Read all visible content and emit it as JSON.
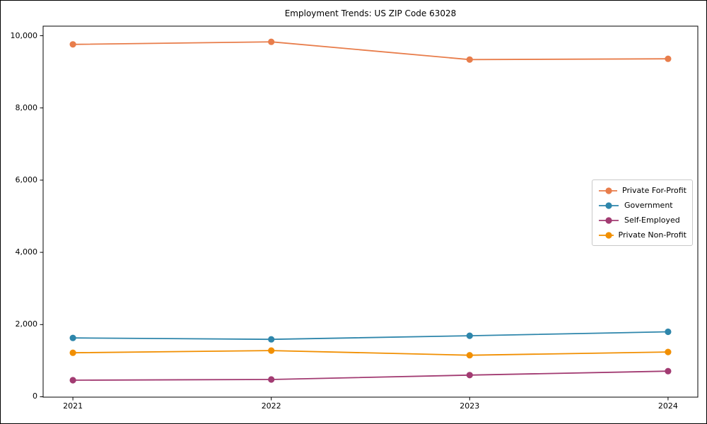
{
  "chart_data": {
    "type": "line",
    "title": "Employment Trends: US ZIP Code 63028",
    "x": [
      2021,
      2022,
      2023,
      2024
    ],
    "x_tick_labels": [
      "2021",
      "2022",
      "2023",
      "2024"
    ],
    "y_ticks": [
      0,
      2000,
      4000,
      6000,
      8000,
      10000
    ],
    "y_tick_labels": [
      "0",
      "2,000",
      "4,000",
      "6,000",
      "8,000",
      "10,000"
    ],
    "xlim": [
      2020.85,
      2024.15
    ],
    "ylim": [
      -10,
      10265
    ],
    "xlabel": "",
    "ylabel": "",
    "grid": false,
    "legend_position": "center-right",
    "marker": "circle",
    "series": [
      {
        "name": "Private For-Profit",
        "color": "#E87D4B",
        "values": [
          9760,
          9830,
          9340,
          9360
        ]
      },
      {
        "name": "Government",
        "color": "#2E86AB",
        "values": [
          1630,
          1590,
          1690,
          1800
        ]
      },
      {
        "name": "Self-Employed",
        "color": "#A23B72",
        "values": [
          460,
          480,
          600,
          710
        ]
      },
      {
        "name": "Private Non-Profit",
        "color": "#F18F01",
        "values": [
          1220,
          1280,
          1150,
          1240
        ]
      }
    ]
  }
}
